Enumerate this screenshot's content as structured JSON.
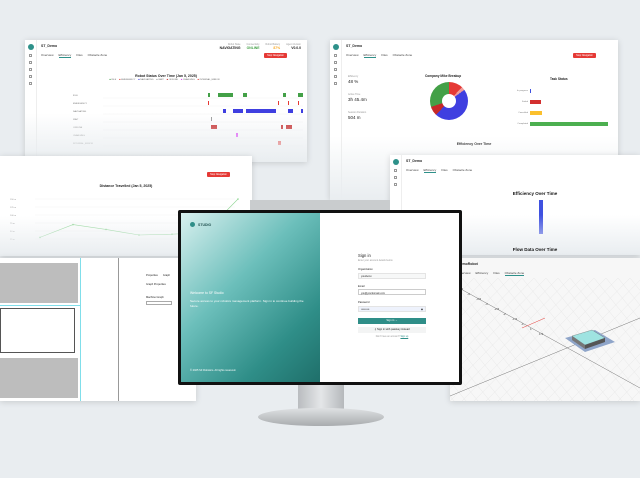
{
  "panels": {
    "timeline": {
      "title": "ST_Demo",
      "tabs": [
        "Overview",
        "Efficiency",
        "Files",
        "Obstacle Zone"
      ],
      "active_tab": 1,
      "stats": [
        {
          "label": "Robot State",
          "value": "NAVIGATING"
        },
        {
          "label": "Connectivity",
          "value": "ONLINE"
        },
        {
          "label": "Robot Battery",
          "value": "87%"
        },
        {
          "label": "Agent Version",
          "value": "V0.0.0"
        }
      ],
      "button": "Stop Navigation",
      "chart_title": "Robot Status Over Time (Jan 5, 2025)",
      "legend": [
        "IDLE",
        "EMERGENCY",
        "NAVIGATING",
        "WAIT",
        "OFFLINE",
        "CHARGING",
        "INTERNAL_ERROR"
      ]
    },
    "efficiency": {
      "title": "ST_Demo",
      "tabs": [
        "Overview",
        "Efficiency",
        "Files",
        "Obstacle Zone"
      ],
      "active_tab": 1,
      "kpis": [
        {
          "label": "Efficiency",
          "value": "48 %"
        },
        {
          "label": "Active Time",
          "value": "3h 45.4m"
        },
        {
          "label": "Session Duration",
          "value": "504 m"
        }
      ],
      "pie_title": "Company Mike Breakup",
      "bar_title": "Task Status",
      "bar_categories": [
        "In progress",
        "Failed",
        "Cancelled",
        "Completed"
      ],
      "bar_colors": [
        "#3f51e0",
        "#d32f2f",
        "#fbc02d",
        "#4caf50"
      ],
      "bar_values": [
        1,
        10,
        11,
        70
      ],
      "footer_title": "Efficiency Over Time"
    },
    "distance": {
      "chart_title": "Distance Travelled (Jan 5, 2025)",
      "y_ticks": [
        "150 m",
        "125 m",
        "100 m",
        "75 m",
        "50 m",
        "25 m"
      ],
      "series": [
        2,
        18,
        12,
        5,
        6,
        8,
        50
      ]
    },
    "efficiency2": {
      "title": "ST_Demo",
      "tabs": [
        "Overview",
        "Efficiency",
        "Files",
        "Obstacle Zone"
      ],
      "chart_title": "Efficiency Over Time",
      "footer_title": "Flow Data Over Time"
    },
    "map": {
      "tabs": [
        "Properties",
        "Graph"
      ],
      "section": "Graph Properties",
      "field_label": "Machine Graph"
    },
    "scene": {
      "title": "DemoRobot",
      "tabs": [
        "Overview",
        "Efficiency",
        "Files",
        "Obstacle Zone"
      ],
      "axis_ticks": [
        "-4.5",
        "-4",
        "-3.5",
        "-3",
        "-2.5",
        "-2",
        "-1.5",
        "-1",
        "1",
        "1.5"
      ]
    }
  },
  "login": {
    "brand": "STUDIO",
    "welcome": "Welcome to SF Studio",
    "description": "Secure access to your robotics management platform. Sign in to continue building the future.",
    "copyright": "© 2025 SF Robotics. All rights reserved.",
    "heading": "Sign in",
    "subheading": "Enter your account details below",
    "org_label": "Organization",
    "org_value": "yourdemo",
    "email_label": "Email",
    "email_value": "you@yourdomain.com",
    "password_label": "Password",
    "password_value": "••••••••••",
    "signin_button": "Sign in  →",
    "passkey_button": "Sign in with passkey instead",
    "register_text": "Don't have an account?",
    "register_link": "Sign up"
  },
  "colors": {
    "accent": "#2f8e88",
    "danger": "#e53935"
  }
}
